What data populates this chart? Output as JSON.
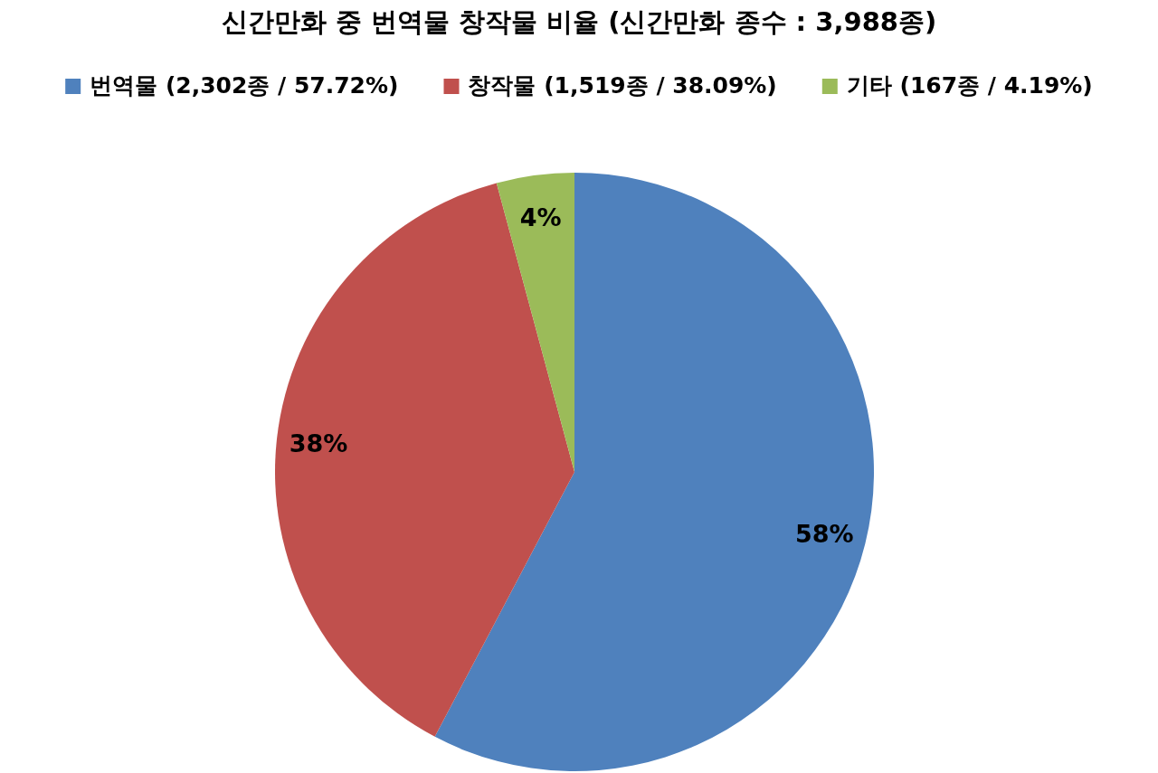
{
  "chart_data": {
    "type": "pie",
    "title": "신간만화 중 번역물 창작물 비율 (신간만화 종수 : 3,988종)",
    "categories": [
      "번역물 (2,302종 / 57.72%)",
      "창작물 (1,519종 / 38.09%)",
      "기타 (167종 / 4.19%)"
    ],
    "values": [
      57.72,
      38.09,
      4.19
    ],
    "colors": [
      "#4f81bd",
      "#c0504d",
      "#9bbb59"
    ],
    "value_labels": [
      "58%",
      "38%",
      "4%"
    ],
    "legend": "top"
  }
}
